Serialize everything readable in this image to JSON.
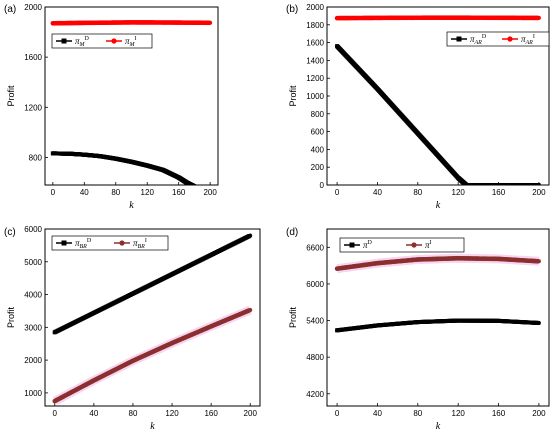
{
  "chart_data": [
    {
      "type": "line",
      "panel_label": "(a)",
      "xlabel": "k",
      "ylabel": "Profit",
      "xlim": [
        -10,
        210
      ],
      "ylim": [
        580,
        2000
      ],
      "xticks": [
        0,
        40,
        80,
        120,
        160,
        200
      ],
      "yticks": [
        800,
        1200,
        1600,
        2000
      ],
      "series": [
        {
          "name": "πM D",
          "base": "π",
          "sub": "M",
          "sup": "D",
          "color": "#000000",
          "marker": "square",
          "x": [
            0,
            20,
            40,
            60,
            80,
            100,
            120,
            140,
            160,
            170,
            180,
            200
          ],
          "y": [
            832,
            830,
            822,
            810,
            790,
            765,
            735,
            700,
            640,
            600,
            568,
            470
          ]
        },
        {
          "name": "πM I",
          "base": "π",
          "sub": "M",
          "sup": "I",
          "color": "#ff0000",
          "marker": "circle",
          "x": [
            0,
            50,
            100,
            150,
            200
          ],
          "y": [
            1870,
            1874,
            1877,
            1876,
            1874
          ]
        }
      ],
      "legend": "upper-left"
    },
    {
      "type": "line",
      "panel_label": "(b)",
      "xlabel": "k",
      "ylabel": "Profit",
      "xlim": [
        -10,
        210
      ],
      "ylim": [
        0,
        2000
      ],
      "xticks": [
        0,
        40,
        80,
        120,
        160,
        200
      ],
      "yticks": [
        0,
        200,
        400,
        600,
        800,
        1000,
        1200,
        1400,
        1600,
        1800,
        2000
      ],
      "series": [
        {
          "name": "πAR D",
          "base": "π",
          "sub": "AR",
          "sup": "D",
          "color": "#000000",
          "marker": "square",
          "x": [
            0,
            20,
            40,
            60,
            80,
            100,
            120,
            128,
            140,
            160,
            180,
            200
          ],
          "y": [
            1560,
            1320,
            1080,
            830,
            580,
            330,
            80,
            0,
            0,
            0,
            0,
            0
          ]
        },
        {
          "name": "πAR I",
          "base": "π",
          "sub": "AR",
          "sup": "I",
          "color": "#ff0000",
          "marker": "circle",
          "x": [
            0,
            50,
            100,
            150,
            200
          ],
          "y": [
            1875,
            1878,
            1880,
            1879,
            1877
          ]
        }
      ],
      "legend": "upper-right"
    },
    {
      "type": "line",
      "panel_label": "(c)",
      "xlabel": "k",
      "ylabel": "Profit",
      "xlim": [
        -10,
        210
      ],
      "ylim": [
        600,
        6000
      ],
      "xticks": [
        0,
        40,
        80,
        120,
        160,
        200
      ],
      "yticks": [
        1000,
        2000,
        3000,
        4000,
        5000,
        6000
      ],
      "series": [
        {
          "name": "πBR D",
          "base": "π",
          "sub": "BR",
          "sup": "D",
          "color": "#000000",
          "marker": "square",
          "x": [
            0,
            40,
            80,
            120,
            160,
            200
          ],
          "y": [
            2850,
            3440,
            4030,
            4620,
            5210,
            5800
          ]
        },
        {
          "name": "πBR I",
          "base": "π",
          "sub": "BR",
          "sup": "I",
          "color": "#8b2f2f",
          "marker": "circle",
          "x": [
            0,
            40,
            80,
            120,
            160,
            200
          ],
          "y": [
            750,
            1380,
            1980,
            2520,
            3030,
            3530
          ]
        }
      ],
      "legend": "upper-left"
    },
    {
      "type": "line",
      "panel_label": "(d)",
      "xlabel": "k",
      "ylabel": "Profit",
      "xlim": [
        -10,
        210
      ],
      "ylim": [
        4000,
        6900
      ],
      "xticks": [
        0,
        40,
        80,
        120,
        160,
        200
      ],
      "yticks": [
        4200,
        4800,
        5400,
        6000,
        6600
      ],
      "series": [
        {
          "name": "πD",
          "base": "π",
          "sub": "",
          "sup": "D",
          "color": "#000000",
          "marker": "square",
          "x": [
            0,
            40,
            80,
            120,
            160,
            200
          ],
          "y": [
            5240,
            5320,
            5375,
            5400,
            5395,
            5360
          ]
        },
        {
          "name": "πI",
          "base": "π",
          "sub": "",
          "sup": "I",
          "color": "#8b2f2f",
          "marker": "circle",
          "x": [
            0,
            40,
            80,
            120,
            160,
            200
          ],
          "y": [
            6250,
            6340,
            6400,
            6420,
            6410,
            6370
          ]
        }
      ],
      "legend": "upper-center"
    }
  ]
}
